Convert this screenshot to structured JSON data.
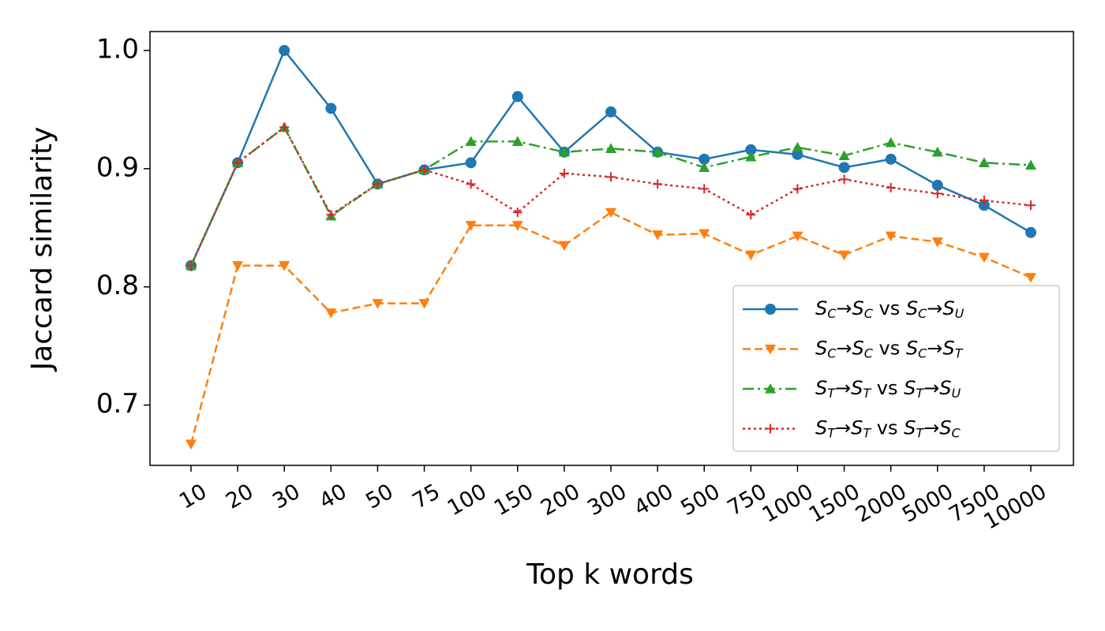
{
  "chart_data": {
    "type": "line",
    "x_label": "Top k words",
    "y_label": "Jaccard similarity",
    "categories": [
      "10",
      "20",
      "30",
      "40",
      "50",
      "75",
      "100",
      "150",
      "200",
      "300",
      "400",
      "500",
      "750",
      "1000",
      "1500",
      "2000",
      "5000",
      "7500",
      "10000"
    ],
    "ylim": [
      0.649,
      1.016
    ],
    "yticks": [
      {
        "value": 0.7,
        "label": "0.7"
      },
      {
        "value": 0.8,
        "label": "0.8"
      },
      {
        "value": 0.9,
        "label": "0.9"
      },
      {
        "value": 1.0,
        "label": "1.0"
      }
    ],
    "legend": "lower right",
    "series": [
      {
        "name": "SC→SC vs SC→SU",
        "color": "#1f77b4",
        "marker": "circle",
        "linestyle": "solid",
        "values": [
          0.818,
          0.905,
          1.0,
          0.951,
          0.887,
          0.899,
          0.905,
          0.961,
          0.914,
          0.948,
          0.914,
          0.908,
          0.916,
          0.912,
          0.901,
          0.908,
          0.886,
          0.869,
          0.846
        ]
      },
      {
        "name": "SC→SC vs SC→ST",
        "color": "#ff7f0e",
        "marker": "triangle-down",
        "linestyle": "dashed",
        "values": [
          0.667,
          0.818,
          0.818,
          0.778,
          0.786,
          0.786,
          0.852,
          0.852,
          0.835,
          0.863,
          0.844,
          0.845,
          0.827,
          0.843,
          0.827,
          0.843,
          0.838,
          0.825,
          0.808
        ]
      },
      {
        "name": "ST→ST vs ST→SU",
        "color": "#2ca02c",
        "marker": "triangle-up",
        "linestyle": "dashdot",
        "values": [
          0.818,
          0.905,
          0.935,
          0.86,
          0.887,
          0.899,
          0.923,
          0.923,
          0.914,
          0.917,
          0.914,
          0.901,
          0.91,
          0.918,
          0.911,
          0.922,
          0.914,
          0.905,
          0.903
        ]
      },
      {
        "name": "ST→ST vs ST→SC",
        "color": "#d62728",
        "marker": "plus",
        "linestyle": "dotted",
        "values": [
          0.818,
          0.905,
          0.935,
          0.861,
          0.887,
          0.899,
          0.887,
          0.863,
          0.896,
          0.893,
          0.887,
          0.883,
          0.861,
          0.883,
          0.891,
          0.884,
          0.879,
          0.873,
          0.869
        ]
      }
    ]
  }
}
